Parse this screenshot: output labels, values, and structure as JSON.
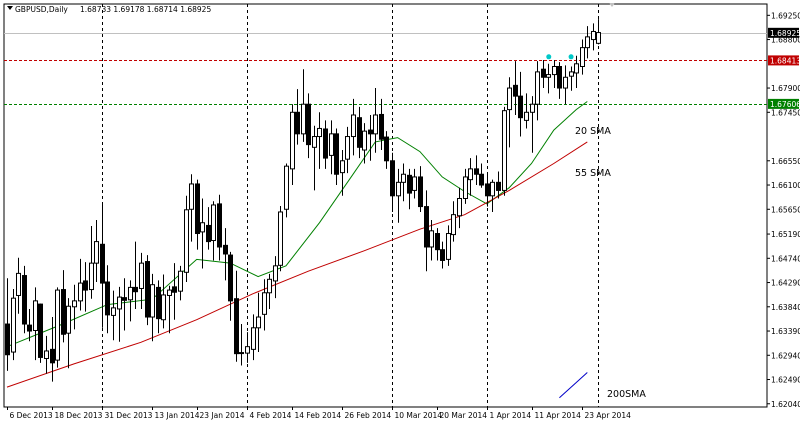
{
  "window": {
    "symbol_title": "GBPUSD,Daily",
    "ohlc_text": "1.68733 1.69178 1.68714 1.68925"
  },
  "colors": {
    "background": "#ffffff",
    "bull": "#ffffff",
    "bear": "#000000",
    "sma20": "#008000",
    "sma55": "#c00000",
    "sma200": "#0000c8",
    "level_red": "#c00000",
    "level_green": "#008000",
    "current_price_line": "#c0c0c0",
    "marker": "#00c8c8"
  },
  "chart_data": {
    "type": "candlestick",
    "price_axis": {
      "ylim": [
        1.6198,
        1.6946
      ],
      "ticks": [
        "1.69250",
        "1.68800",
        "1.67900",
        "1.67450",
        "1.66550",
        "1.66100",
        "1.65650",
        "1.65190",
        "1.64740",
        "1.64290",
        "1.63840",
        "1.63390",
        "1.62940",
        "1.62490",
        "1.62040"
      ],
      "tick_values": [
        1.6925,
        1.688,
        1.679,
        1.6745,
        1.6655,
        1.661,
        1.6565,
        1.6519,
        1.6474,
        1.6429,
        1.6384,
        1.6339,
        1.6294,
        1.6249,
        1.6204
      ]
    },
    "time_axis": {
      "labels": [
        "6 Dec 2013",
        "18 Dec 2013",
        "31 Dec 2013",
        "13 Jan 2014",
        "23 Jan 2014",
        "4 Feb 2014",
        "14 Feb 2014",
        "26 Feb 2014",
        "10 Mar 2014",
        "20 Mar 2014",
        "1 Apr 2014",
        "11 Apr 2014",
        "23 Apr 2014"
      ],
      "label_bar_index": [
        0,
        8,
        17,
        26,
        34,
        43,
        51,
        60,
        69,
        77,
        86,
        94,
        103
      ]
    },
    "candles": [
      [
        1.6352,
        1.6437,
        1.6265,
        1.6295
      ],
      [
        1.63,
        1.6417,
        1.6285,
        1.64
      ],
      [
        1.6405,
        1.6475,
        1.6371,
        1.6446
      ],
      [
        1.6442,
        1.646,
        1.6335,
        1.6352
      ],
      [
        1.635,
        1.638,
        1.632,
        1.6339
      ],
      [
        1.634,
        1.642,
        1.6285,
        1.6395
      ],
      [
        1.6389,
        1.639,
        1.628,
        1.629
      ],
      [
        1.6288,
        1.633,
        1.626,
        1.6302
      ],
      [
        1.6305,
        1.6365,
        1.6245,
        1.628
      ],
      [
        1.6285,
        1.642,
        1.6271,
        1.6415
      ],
      [
        1.6416,
        1.6452,
        1.6318,
        1.6333
      ],
      [
        1.6335,
        1.64,
        1.627,
        1.6385
      ],
      [
        1.6384,
        1.6425,
        1.6342,
        1.6395
      ],
      [
        1.6395,
        1.6473,
        1.6377,
        1.6428
      ],
      [
        1.6432,
        1.6467,
        1.6375,
        1.6415
      ],
      [
        1.6416,
        1.6534,
        1.6399,
        1.6465
      ],
      [
        1.6465,
        1.6545,
        1.643,
        1.6505
      ],
      [
        1.65,
        1.6573,
        1.6345,
        1.6428
      ],
      [
        1.643,
        1.6461,
        1.6335,
        1.6369
      ],
      [
        1.6368,
        1.6414,
        1.6322,
        1.6382
      ],
      [
        1.638,
        1.6421,
        1.6319,
        1.6402
      ],
      [
        1.6401,
        1.6437,
        1.634,
        1.6396
      ],
      [
        1.6397,
        1.6433,
        1.6357,
        1.642
      ],
      [
        1.642,
        1.6505,
        1.638,
        1.6412
      ],
      [
        1.6418,
        1.6484,
        1.638,
        1.6465
      ],
      [
        1.6468,
        1.648,
        1.635,
        1.6365
      ],
      [
        1.6365,
        1.6445,
        1.632,
        1.6425
      ],
      [
        1.642,
        1.6433,
        1.6335,
        1.6362
      ],
      [
        1.636,
        1.6444,
        1.6344,
        1.6406
      ],
      [
        1.6405,
        1.6423,
        1.6335,
        1.6415
      ],
      [
        1.6421,
        1.6465,
        1.636,
        1.6411
      ],
      [
        1.6413,
        1.646,
        1.6396,
        1.645
      ],
      [
        1.6448,
        1.659,
        1.643,
        1.6564
      ],
      [
        1.6565,
        1.663,
        1.6505,
        1.6612
      ],
      [
        1.6612,
        1.662,
        1.649,
        1.652
      ],
      [
        1.6523,
        1.6585,
        1.6455,
        1.654
      ],
      [
        1.6535,
        1.6569,
        1.649,
        1.6505
      ],
      [
        1.6507,
        1.658,
        1.647,
        1.6573
      ],
      [
        1.6575,
        1.6592,
        1.647,
        1.6495
      ],
      [
        1.6498,
        1.653,
        1.6433,
        1.6482
      ],
      [
        1.648,
        1.6486,
        1.6358,
        1.6395
      ],
      [
        1.6399,
        1.6451,
        1.6282,
        1.6297
      ],
      [
        1.6298,
        1.6352,
        1.6275,
        1.6299
      ],
      [
        1.6298,
        1.6337,
        1.628,
        1.631
      ],
      [
        1.6305,
        1.637,
        1.6285,
        1.6345
      ],
      [
        1.6345,
        1.641,
        1.63,
        1.6365
      ],
      [
        1.637,
        1.6435,
        1.634,
        1.641
      ],
      [
        1.641,
        1.6445,
        1.638,
        1.6435
      ],
      [
        1.6432,
        1.6478,
        1.64,
        1.646
      ],
      [
        1.6461,
        1.6571,
        1.645,
        1.656
      ],
      [
        1.6565,
        1.665,
        1.655,
        1.6645
      ],
      [
        1.664,
        1.676,
        1.661,
        1.6745
      ],
      [
        1.6745,
        1.6788,
        1.6685,
        1.6705
      ],
      [
        1.6705,
        1.6825,
        1.669,
        1.676
      ],
      [
        1.676,
        1.678,
        1.666,
        1.6685
      ],
      [
        1.668,
        1.672,
        1.66,
        1.67
      ],
      [
        1.67,
        1.6745,
        1.664,
        1.6715
      ],
      [
        1.6714,
        1.673,
        1.664,
        1.666
      ],
      [
        1.6665,
        1.673,
        1.663,
        1.6705
      ],
      [
        1.6705,
        1.6715,
        1.661,
        1.663
      ],
      [
        1.6633,
        1.6675,
        1.659,
        1.6655
      ],
      [
        1.6658,
        1.6718,
        1.6632,
        1.67
      ],
      [
        1.67,
        1.677,
        1.6665,
        1.674
      ],
      [
        1.6735,
        1.6755,
        1.666,
        1.668
      ],
      [
        1.6675,
        1.6725,
        1.665,
        1.671
      ],
      [
        1.6712,
        1.674,
        1.6655,
        1.6705
      ],
      [
        1.6705,
        1.679,
        1.667,
        1.674
      ],
      [
        1.6741,
        1.677,
        1.6675,
        1.6695
      ],
      [
        1.6699,
        1.671,
        1.664,
        1.6655
      ],
      [
        1.6655,
        1.667,
        1.656,
        1.659
      ],
      [
        1.659,
        1.664,
        1.654,
        1.6615
      ],
      [
        1.6615,
        1.665,
        1.658,
        1.663
      ],
      [
        1.6628,
        1.664,
        1.6565,
        1.6595
      ],
      [
        1.66,
        1.664,
        1.6585,
        1.6625
      ],
      [
        1.6625,
        1.6645,
        1.656,
        1.657
      ],
      [
        1.657,
        1.66,
        1.645,
        1.6495
      ],
      [
        1.6495,
        1.6545,
        1.647,
        1.6525
      ],
      [
        1.652,
        1.653,
        1.647,
        1.649
      ],
      [
        1.649,
        1.6505,
        1.6455,
        1.647
      ],
      [
        1.6472,
        1.6535,
        1.646,
        1.652
      ],
      [
        1.6518,
        1.658,
        1.6505,
        1.6555
      ],
      [
        1.6553,
        1.6605,
        1.653,
        1.6585
      ],
      [
        1.6585,
        1.664,
        1.6575,
        1.6625
      ],
      [
        1.662,
        1.666,
        1.659,
        1.664
      ],
      [
        1.664,
        1.6665,
        1.661,
        1.663
      ],
      [
        1.663,
        1.665,
        1.6605,
        1.661
      ],
      [
        1.6612,
        1.663,
        1.657,
        1.659
      ],
      [
        1.659,
        1.662,
        1.656,
        1.6615
      ],
      [
        1.6615,
        1.6635,
        1.6585,
        1.66
      ],
      [
        1.66,
        1.6755,
        1.659,
        1.6748
      ],
      [
        1.675,
        1.681,
        1.668,
        1.679
      ],
      [
        1.6795,
        1.684,
        1.674,
        1.6775
      ],
      [
        1.6775,
        1.682,
        1.67,
        1.6735
      ],
      [
        1.673,
        1.678,
        1.6715,
        1.6745
      ],
      [
        1.6745,
        1.6775,
        1.667,
        1.676
      ],
      [
        1.676,
        1.684,
        1.673,
        1.682
      ],
      [
        1.6825,
        1.6842,
        1.679,
        1.681
      ],
      [
        1.681,
        1.6835,
        1.678,
        1.6815
      ],
      [
        1.6815,
        1.6842,
        1.679,
        1.683
      ],
      [
        1.683,
        1.6838,
        1.677,
        1.679
      ],
      [
        1.679,
        1.6832,
        1.676,
        1.681
      ],
      [
        1.6812,
        1.683,
        1.6785,
        1.682
      ],
      [
        1.6818,
        1.685,
        1.679,
        1.6835
      ],
      [
        1.683,
        1.688,
        1.6815,
        1.6865
      ],
      [
        1.6865,
        1.6905,
        1.6845,
        1.6885
      ],
      [
        1.688,
        1.691,
        1.686,
        1.6895
      ],
      [
        1.6873,
        1.6918,
        1.6871,
        1.6893
      ]
    ],
    "indicators": [
      {
        "name": "20 SMA",
        "label": "20 SMA",
        "color_key": "sma20",
        "points": [
          [
            0,
            1.631
          ],
          [
            10,
            1.6352
          ],
          [
            18,
            1.6388
          ],
          [
            26,
            1.6398
          ],
          [
            34,
            1.6472
          ],
          [
            40,
            1.6465
          ],
          [
            45,
            1.644
          ],
          [
            50,
            1.646
          ],
          [
            56,
            1.654
          ],
          [
            62,
            1.663
          ],
          [
            66,
            1.669
          ],
          [
            70,
            1.6698
          ],
          [
            74,
            1.6672
          ],
          [
            78,
            1.6625
          ],
          [
            82,
            1.6598
          ],
          [
            86,
            1.6575
          ],
          [
            90,
            1.6605
          ],
          [
            94,
            1.665
          ],
          [
            98,
            1.6712
          ],
          [
            102,
            1.675
          ],
          [
            104,
            1.6765
          ]
        ]
      },
      {
        "name": "55 SMA",
        "label": "55 SMA",
        "color_key": "sma55",
        "points": [
          [
            0,
            1.6235
          ],
          [
            12,
            1.6278
          ],
          [
            24,
            1.6318
          ],
          [
            34,
            1.636
          ],
          [
            44,
            1.6408
          ],
          [
            54,
            1.645
          ],
          [
            64,
            1.6488
          ],
          [
            74,
            1.6528
          ],
          [
            82,
            1.6555
          ],
          [
            90,
            1.66
          ],
          [
            98,
            1.665
          ],
          [
            104,
            1.669
          ]
        ]
      },
      {
        "name": "200SMA",
        "label": "200SMA",
        "color_key": "sma200",
        "points": [
          [
            99,
            1.6215
          ],
          [
            104,
            1.6262
          ]
        ]
      }
    ],
    "horizontal_levels": [
      {
        "price": 1.68413,
        "label": "1.68413",
        "color_key": "level_red",
        "style": "dashed"
      },
      {
        "price": 1.67606,
        "label": "1.67606",
        "color_key": "level_green",
        "style": "dashed"
      },
      {
        "price": 1.68925,
        "label": "1.68925",
        "color_key": "current_price_line",
        "style": "solid",
        "label_inverse": true
      }
    ],
    "markers": [
      {
        "bar": 97,
        "price": 1.6848,
        "color_key": "marker"
      },
      {
        "bar": 101,
        "price": 1.6848,
        "color_key": "marker"
      }
    ],
    "grid": "vertical-dashed"
  }
}
